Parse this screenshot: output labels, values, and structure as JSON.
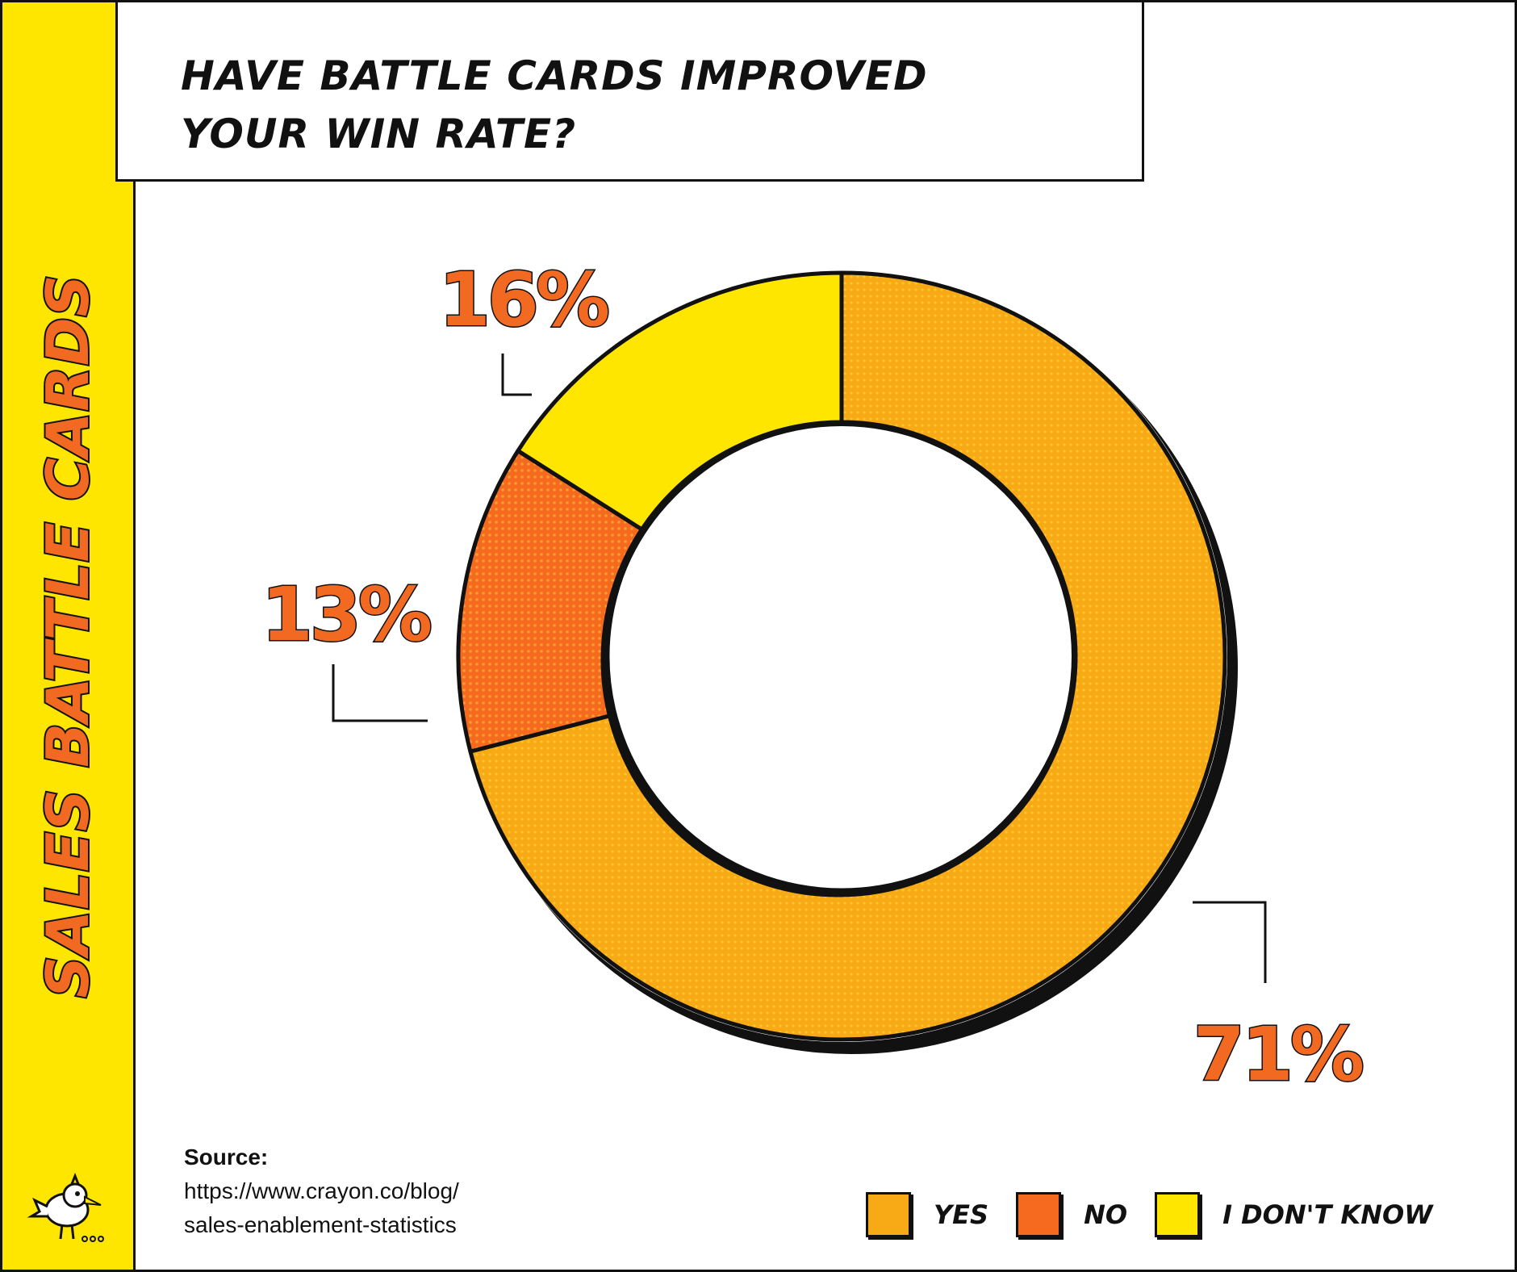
{
  "side_title": "SALES BATTLE CARDS",
  "colors": {
    "band": "#FFE600",
    "yes": "#F7AA16",
    "no": "#F56A1F",
    "dont_know": "#FFE600",
    "label": "#F26A21",
    "outline": "#111111"
  },
  "chart_data": {
    "type": "pie",
    "style": "donut",
    "title": "HAVE BATTLE CARDS IMPROVED YOUR WIN RATE?",
    "categories": [
      "YES",
      "NO",
      "I DON'T KNOW"
    ],
    "values": [
      71,
      13,
      16
    ],
    "value_labels": [
      "71%",
      "13%",
      "16%"
    ],
    "legend_position": "bottom-right"
  },
  "source": {
    "label": "Source:",
    "line1": "https://www.crayon.co/blog/",
    "line2": "sales-enablement-statistics"
  },
  "icons": [
    "mascot-bird-icon"
  ]
}
